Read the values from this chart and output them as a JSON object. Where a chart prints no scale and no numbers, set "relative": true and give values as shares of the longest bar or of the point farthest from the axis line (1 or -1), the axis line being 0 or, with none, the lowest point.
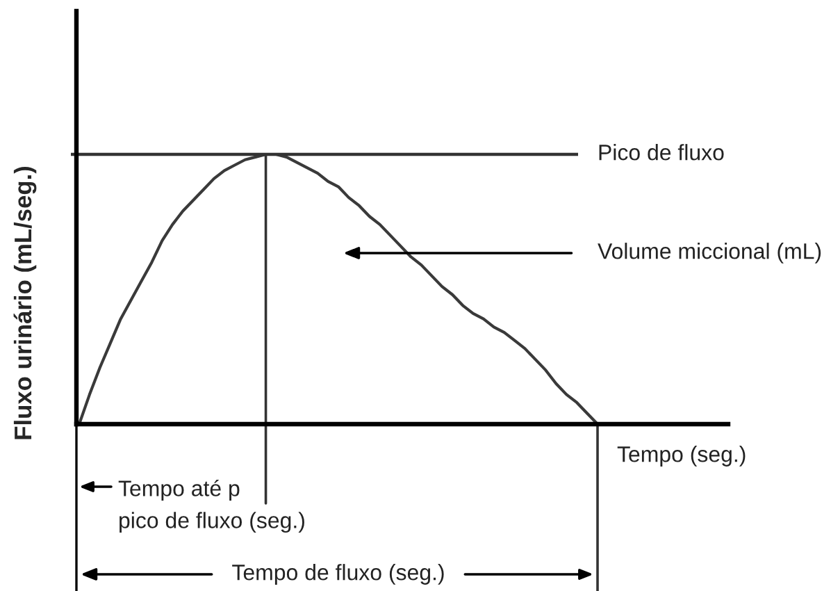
{
  "chart_data": {
    "type": "line",
    "relative": true,
    "ylabel": "Fluxo urinário (mL/seg.)",
    "xlabel": "Tempo (seg.)",
    "categories": [
      null,
      null,
      null,
      null,
      null,
      null,
      null,
      null,
      null,
      null,
      null,
      null,
      null,
      null,
      null,
      null,
      null,
      null,
      null,
      null,
      null,
      null,
      null,
      null,
      null,
      null,
      null,
      null,
      null,
      null,
      null,
      null,
      null,
      null,
      null,
      null,
      null,
      null,
      null,
      null,
      null,
      null,
      null,
      null,
      null,
      null,
      null,
      null,
      null,
      null,
      null
    ],
    "series": [
      {
        "color": "#3a3a3a",
        "values": [
          0,
          0.11,
          0.21,
          0.3,
          0.39,
          0.46,
          0.53,
          0.6,
          0.68,
          0.74,
          0.79,
          0.83,
          0.87,
          0.91,
          0.94,
          0.96,
          0.98,
          0.99,
          1,
          1,
          0.99,
          0.97,
          0.95,
          0.93,
          0.9,
          0.88,
          0.84,
          0.81,
          0.77,
          0.74,
          0.7,
          0.66,
          0.62,
          0.59,
          0.55,
          0.51,
          0.48,
          0.44,
          0.41,
          0.39,
          0.36,
          0.34,
          0.31,
          0.28,
          0.24,
          0.2,
          0.15,
          0.11,
          0.08,
          0.04,
          0
        ]
      }
    ],
    "ref_lines": [
      {
        "axis": "y",
        "value": 1,
        "label": "Pico de fluxo"
      }
    ],
    "annotations": [
      "Volume miccional (mL)",
      "Tempo até p\npico de fluxo (seg.)",
      "Tempo de fluxo (seg.)"
    ],
    "grid": false,
    "marker": "none",
    "line_style": "solid"
  }
}
